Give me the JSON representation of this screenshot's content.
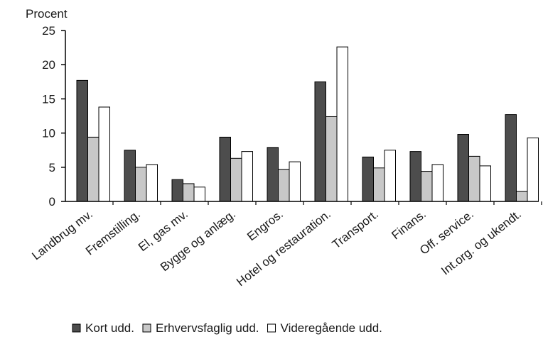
{
  "chart_data": {
    "type": "bar",
    "ylabel": "Procent",
    "ylim": [
      0,
      25
    ],
    "yticks": [
      0,
      5,
      10,
      15,
      20,
      25
    ],
    "grid": false,
    "legend_position": "bottom",
    "categories": [
      "Landbrug mv.",
      "Fremstilling.",
      "El, gas mv.",
      "Bygge og anlæg.",
      "Engros.",
      "Hotel og restauration.",
      "Transport.",
      "Finans.",
      "Off. service.",
      "Int.org. og ukendt."
    ],
    "series": [
      {
        "name": "Kort udd.",
        "color": "#4d4d4d",
        "values": [
          17.7,
          7.5,
          3.2,
          9.4,
          7.9,
          17.5,
          6.5,
          7.3,
          9.8,
          12.7
        ]
      },
      {
        "name": "Erhvervsfaglig udd.",
        "color": "#c8c8c8",
        "values": [
          9.4,
          5.0,
          2.6,
          6.3,
          4.7,
          12.4,
          4.9,
          4.4,
          6.6,
          1.5
        ]
      },
      {
        "name": "Videregående udd.",
        "color": "#ffffff",
        "values": [
          13.8,
          5.4,
          2.1,
          7.3,
          5.8,
          22.6,
          7.5,
          5.4,
          5.2,
          9.3
        ]
      }
    ]
  }
}
